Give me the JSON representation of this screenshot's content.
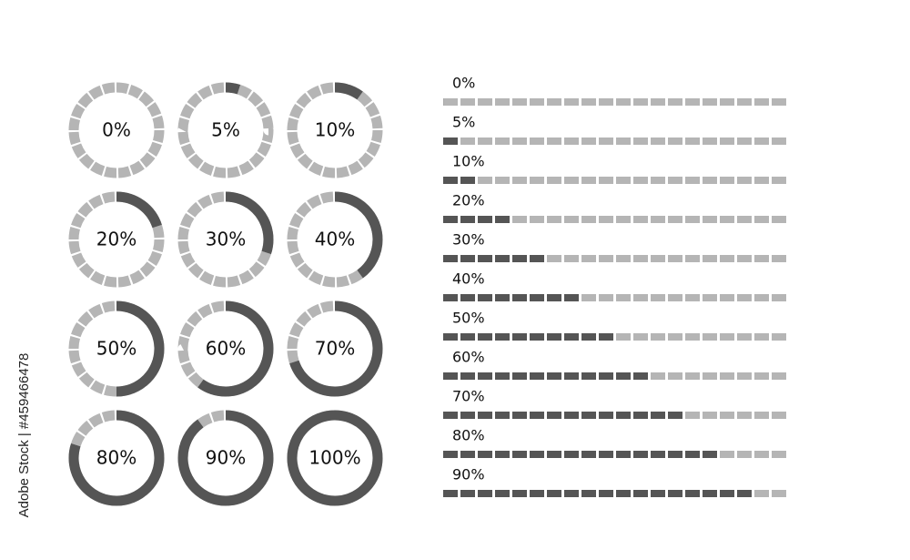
{
  "watermark": "Adobe Stock | #459466478",
  "rings": {
    "values": [
      0,
      5,
      10,
      20,
      30,
      40,
      50,
      60,
      70,
      80,
      90,
      100
    ],
    "value_labels": [
      "0%",
      "5%",
      "10%",
      "20%",
      "30%",
      "40%",
      "50%",
      "60%",
      "70%",
      "80%",
      "90%",
      "100%"
    ],
    "track_color": "#b5b5b5",
    "fill_color": "#555555"
  },
  "bars": {
    "values": [
      0,
      5,
      10,
      20,
      30,
      40,
      50,
      60,
      70,
      80,
      90
    ],
    "value_labels": [
      "0%",
      "5%",
      "10%",
      "20%",
      "30%",
      "40%",
      "50%",
      "60%",
      "70%",
      "80%",
      "90%"
    ],
    "track_color": "#b5b5b5",
    "fill_color": "#555555"
  }
}
